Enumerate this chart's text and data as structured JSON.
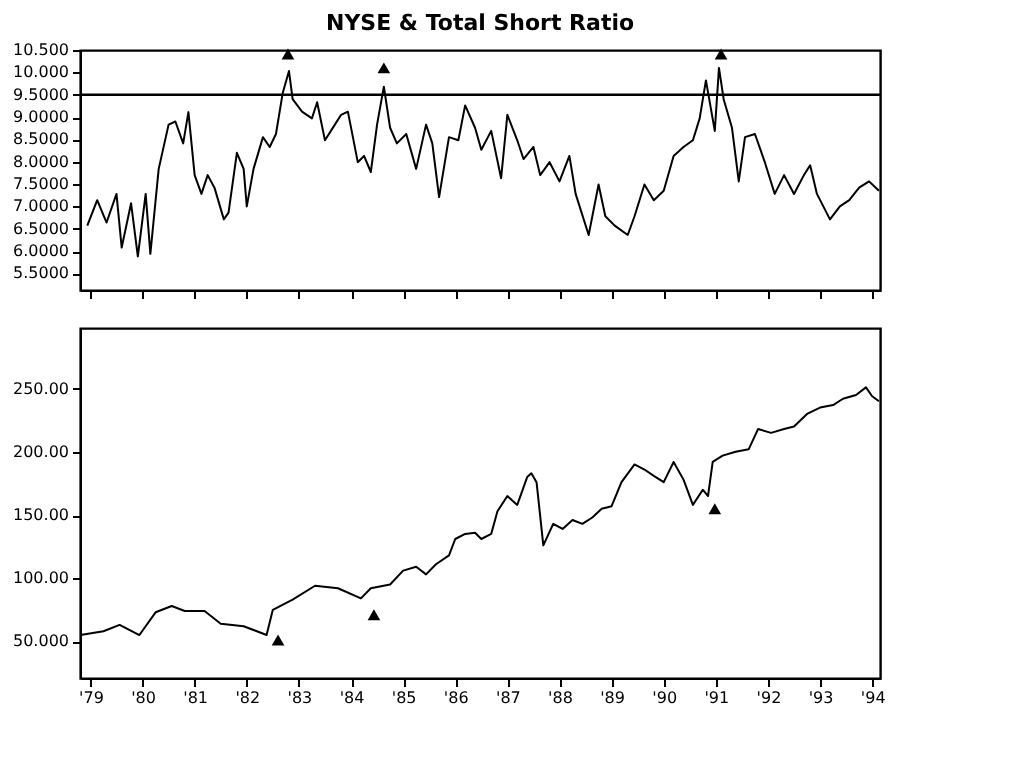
{
  "chart_data": [
    {
      "type": "line",
      "title": "NYSE & Total Short Ratio",
      "xlim": [
        1978.8,
        1994.15
      ],
      "xticks": [
        {
          "value": 1979,
          "label": null
        },
        {
          "value": 1980,
          "label": null
        },
        {
          "value": 1981,
          "label": null
        },
        {
          "value": 1982,
          "label": null
        },
        {
          "value": 1983,
          "label": null
        },
        {
          "value": 1984,
          "label": null
        },
        {
          "value": 1985,
          "label": null
        },
        {
          "value": 1986,
          "label": null
        },
        {
          "value": 1987,
          "label": null
        },
        {
          "value": 1988,
          "label": null
        },
        {
          "value": 1989,
          "label": null
        },
        {
          "value": 1990,
          "label": null
        },
        {
          "value": 1991,
          "label": null
        },
        {
          "value": 1992,
          "label": null
        },
        {
          "value": 1993,
          "label": null
        },
        {
          "value": 1994,
          "label": null
        }
      ],
      "ylim": [
        5.13,
        10.5
      ],
      "yticks": [
        {
          "value": 5.5,
          "label": "5.5000"
        },
        {
          "value": 6.0,
          "label": "6.0000"
        },
        {
          "value": 6.5,
          "label": "6.5000"
        },
        {
          "value": 7.0,
          "label": "7.0000"
        },
        {
          "value": 7.5,
          "label": "7.5000"
        },
        {
          "value": 8.0,
          "label": "8.0000"
        },
        {
          "value": 8.5,
          "label": "8.5000"
        },
        {
          "value": 9.0,
          "label": "9.0000"
        },
        {
          "value": 9.5,
          "label": "9.5000"
        },
        {
          "value": 10.0,
          "label": "10.000"
        },
        {
          "value": 10.5,
          "label": "10.500"
        }
      ],
      "tick_labels": "y",
      "grid": false,
      "ref_lines": [
        {
          "axis": "y",
          "value": 9.5,
          "color": "#000000"
        }
      ],
      "series": [
        {
          "color": "#000000",
          "x": [
            1978.94,
            1979.13,
            1979.31,
            1979.5,
            1979.6,
            1979.78,
            1979.91,
            1980.06,
            1980.15,
            1980.31,
            1980.5,
            1980.63,
            1980.78,
            1980.88,
            1981.0,
            1981.13,
            1981.25,
            1981.38,
            1981.56,
            1981.65,
            1981.81,
            1981.94,
            1982.0,
            1982.13,
            1982.31,
            1982.44,
            1982.56,
            1982.69,
            1982.81,
            1982.88,
            1983.06,
            1983.25,
            1983.35,
            1983.5,
            1983.69,
            1983.81,
            1983.94,
            1984.13,
            1984.25,
            1984.38,
            1984.5,
            1984.63,
            1984.75,
            1984.88,
            1985.06,
            1985.25,
            1985.44,
            1985.56,
            1985.69,
            1985.88,
            1986.06,
            1986.19,
            1986.38,
            1986.5,
            1986.69,
            1986.88,
            1987.0,
            1987.19,
            1987.31,
            1987.5,
            1987.63,
            1987.81,
            1988.0,
            1988.19,
            1988.31,
            1988.56,
            1988.75,
            1988.88,
            1989.06,
            1989.31,
            1989.44,
            1989.63,
            1989.81,
            1990.0,
            1990.19,
            1990.38,
            1990.56,
            1990.69,
            1990.81,
            1990.98,
            1991.06,
            1991.15,
            1991.31,
            1991.44,
            1991.56,
            1991.75,
            1991.94,
            1992.13,
            1992.31,
            1992.5,
            1992.69,
            1992.81,
            1992.94,
            1993.19,
            1993.38,
            1993.56,
            1993.75,
            1993.94,
            1994.13
          ],
          "values": [
            6.57,
            7.14,
            6.64,
            7.28,
            6.08,
            7.07,
            5.88,
            7.28,
            5.94,
            7.84,
            8.83,
            8.9,
            8.41,
            9.11,
            7.7,
            7.28,
            7.7,
            7.42,
            6.71,
            6.86,
            8.2,
            7.84,
            7.0,
            7.84,
            8.55,
            8.33,
            8.62,
            9.54,
            10.03,
            9.4,
            9.12,
            8.97,
            9.33,
            8.48,
            8.83,
            9.05,
            9.12,
            7.99,
            8.13,
            7.77,
            8.83,
            9.68,
            8.76,
            8.41,
            8.62,
            7.84,
            8.83,
            8.41,
            7.21,
            8.55,
            8.48,
            9.26,
            8.76,
            8.27,
            8.69,
            7.63,
            9.05,
            8.48,
            8.06,
            8.33,
            7.7,
            7.99,
            7.56,
            8.13,
            7.28,
            6.36,
            7.49,
            6.78,
            6.57,
            6.36,
            6.78,
            7.49,
            7.14,
            7.35,
            8.13,
            8.33,
            8.48,
            8.97,
            9.82,
            8.69,
            10.1,
            9.4,
            8.76,
            7.56,
            8.55,
            8.62,
            7.99,
            7.28,
            7.7,
            7.28,
            7.7,
            7.92,
            7.28,
            6.71,
            7.0,
            7.14,
            7.42,
            7.56,
            7.35
          ]
        },
        {
          "type": "scatter",
          "marker": "triangle",
          "color": "#000000",
          "x": [
            1982.79,
            1984.63,
            1991.1
          ],
          "values": [
            10.41,
            10.1,
            10.41
          ]
        }
      ]
    },
    {
      "type": "line",
      "xlim": [
        1978.8,
        1994.15
      ],
      "xticks": [
        {
          "value": 1979,
          "label": "'79"
        },
        {
          "value": 1980,
          "label": "'80"
        },
        {
          "value": 1981,
          "label": "'81"
        },
        {
          "value": 1982,
          "label": "'82"
        },
        {
          "value": 1983,
          "label": "'83"
        },
        {
          "value": 1984,
          "label": "'84"
        },
        {
          "value": 1985,
          "label": "'85"
        },
        {
          "value": 1986,
          "label": "'86"
        },
        {
          "value": 1987,
          "label": "'87"
        },
        {
          "value": 1988,
          "label": "'88"
        },
        {
          "value": 1989,
          "label": "'89"
        },
        {
          "value": 1990,
          "label": "'90"
        },
        {
          "value": 1991,
          "label": "'91"
        },
        {
          "value": 1992,
          "label": "'92"
        },
        {
          "value": 1993,
          "label": "'93"
        },
        {
          "value": 1994,
          "label": "'94"
        }
      ],
      "ylim": [
        21,
        298
      ],
      "yticks": [
        {
          "value": 50,
          "label": "50.000"
        },
        {
          "value": 100,
          "label": "100.00"
        },
        {
          "value": 150,
          "label": "150.00"
        },
        {
          "value": 200,
          "label": "200.00"
        },
        {
          "value": 250,
          "label": "250.00"
        }
      ],
      "grid": false,
      "series": [
        {
          "color": "#000000",
          "x": [
            1978.81,
            1979.25,
            1979.56,
            1979.94,
            1980.25,
            1980.56,
            1980.81,
            1981.19,
            1981.5,
            1981.94,
            1982.13,
            1982.38,
            1982.5,
            1982.88,
            1983.31,
            1983.75,
            1984.19,
            1984.38,
            1984.75,
            1985.0,
            1985.25,
            1985.44,
            1985.63,
            1985.88,
            1986.0,
            1986.19,
            1986.38,
            1986.5,
            1986.69,
            1986.81,
            1987.0,
            1987.19,
            1987.38,
            1987.46,
            1987.56,
            1987.69,
            1987.88,
            1988.06,
            1988.25,
            1988.44,
            1988.63,
            1988.81,
            1989.0,
            1989.19,
            1989.44,
            1989.63,
            1989.81,
            1990.0,
            1990.19,
            1990.38,
            1990.56,
            1990.75,
            1990.85,
            1990.94,
            1991.13,
            1991.38,
            1991.63,
            1991.81,
            1992.06,
            1992.31,
            1992.5,
            1992.75,
            1993.0,
            1993.25,
            1993.44,
            1993.69,
            1993.88,
            1994.0,
            1994.13
          ],
          "values": [
            55,
            58,
            63,
            55,
            73,
            78,
            74,
            74,
            64,
            62,
            59,
            55,
            75,
            83,
            94,
            92,
            84,
            92,
            95,
            106,
            109,
            103,
            111,
            118,
            131,
            135,
            136,
            131,
            135,
            153,
            165,
            158,
            180,
            183,
            176,
            126,
            143,
            139,
            146,
            143,
            148,
            155,
            157,
            176,
            190,
            186,
            181,
            176,
            192,
            178,
            158,
            170,
            165,
            192,
            197,
            200,
            202,
            218,
            215,
            218,
            220,
            230,
            235,
            237,
            242,
            245,
            251,
            244,
            240
          ]
        },
        {
          "type": "scatter",
          "marker": "triangle",
          "color": "#000000",
          "x": [
            1982.6,
            1984.44,
            1990.98
          ],
          "values": [
            51,
            71,
            155
          ]
        }
      ]
    }
  ]
}
